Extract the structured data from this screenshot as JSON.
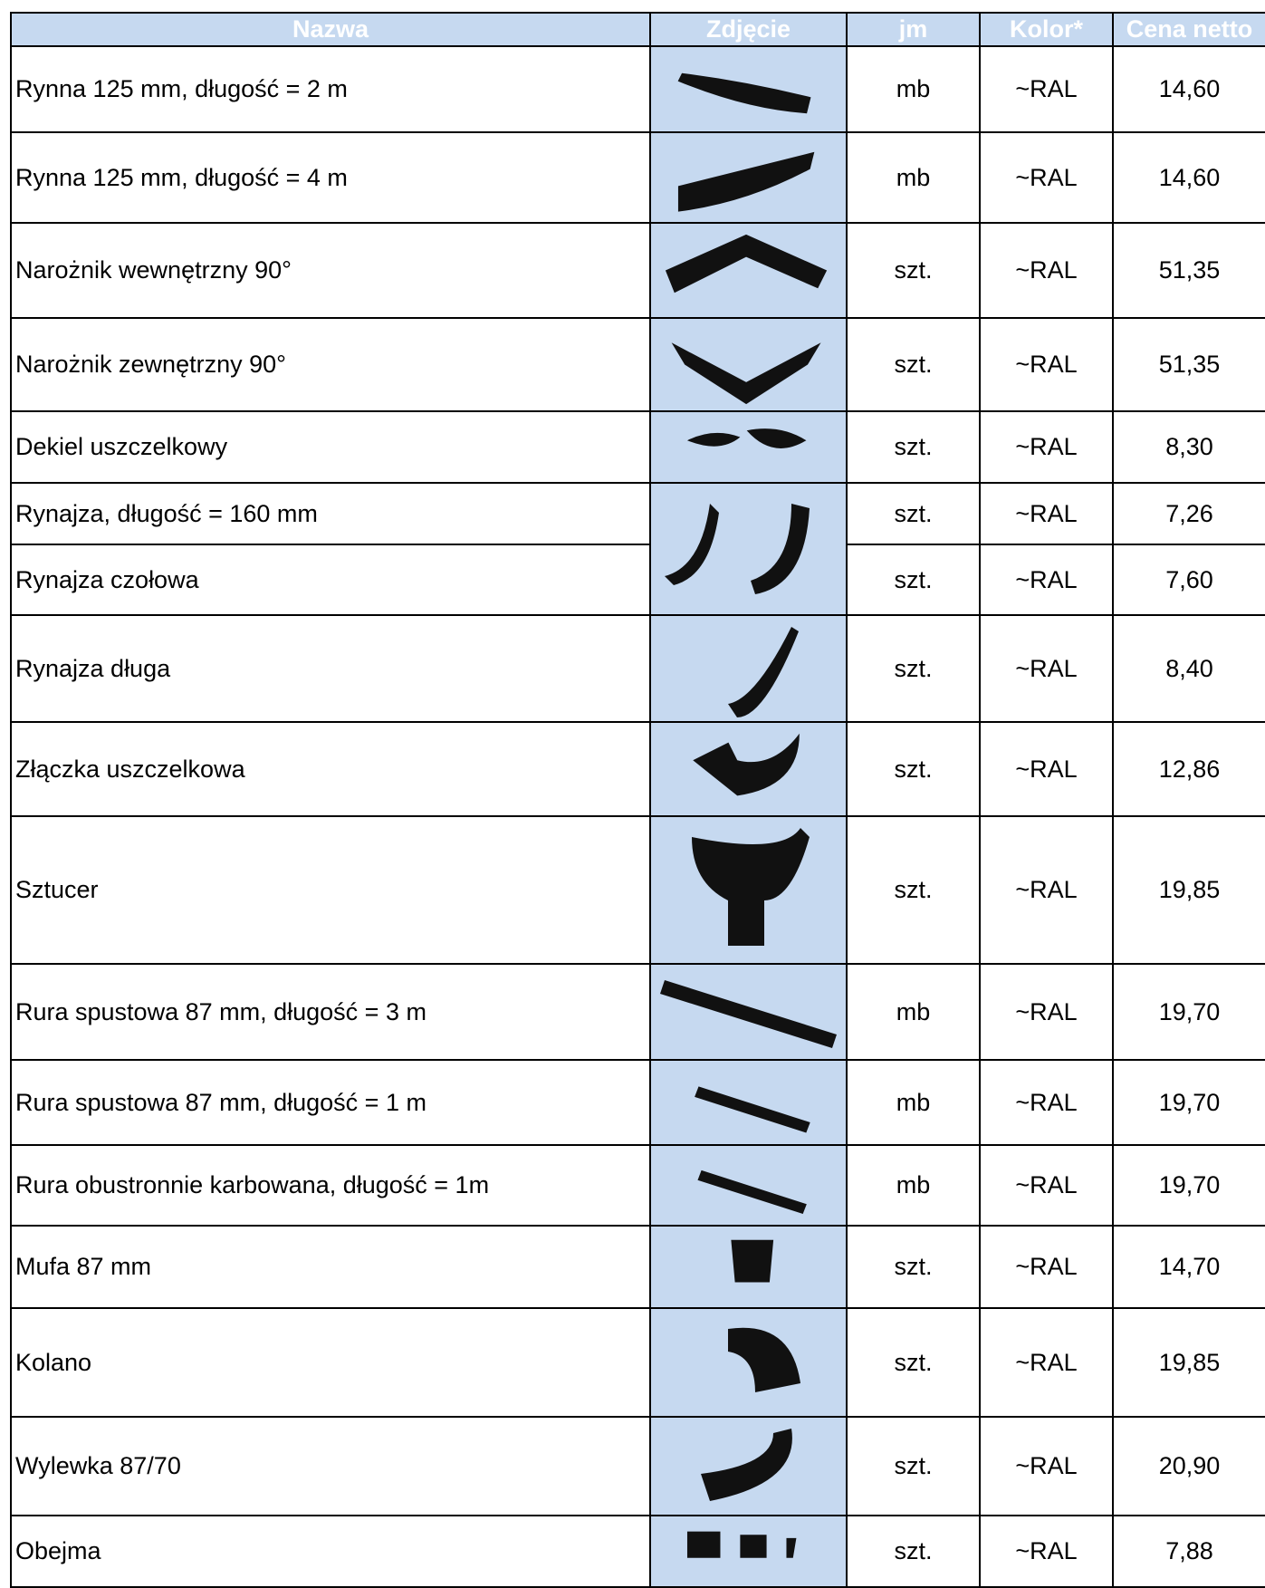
{
  "header": {
    "columns": [
      "Nazwa",
      "Zdjęcie",
      "jm",
      "Kolor*",
      "Cena netto"
    ]
  },
  "table": {
    "rows": [
      [
        "Rynna 125 mm, długość = 2 m",
        "mb",
        "~RAL",
        "14,60"
      ],
      [
        "Rynna 125 mm, długość = 4 m",
        "mb",
        "~RAL",
        "14,60"
      ],
      [
        "Narożnik wewnętrzny 90°",
        "szt.",
        "~RAL",
        "51,35"
      ],
      [
        "Narożnik zewnętrzny 90°",
        "szt.",
        "~RAL",
        "51,35"
      ],
      [
        "Dekiel uszczelkowy",
        "szt.",
        "~RAL",
        "8,30"
      ],
      [
        "Rynajza, długość = 160 mm",
        "szt.",
        "~RAL",
        "7,26"
      ],
      [
        "Rynajza czołowa",
        "szt.",
        "~RAL",
        "7,60"
      ],
      [
        "Rynajza długa",
        "szt.",
        "~RAL",
        "8,40"
      ],
      [
        "Złączka uszczelkowa",
        "szt.",
        "~RAL",
        "12,86"
      ],
      [
        "Sztucer",
        "szt.",
        "~RAL",
        "19,85"
      ],
      [
        "Rura spustowa 87 mm, długość = 3 m",
        "mb",
        "~RAL",
        "19,70"
      ],
      [
        "Rura spustowa 87 mm, długość = 1 m",
        "mb",
        "~RAL",
        "19,70"
      ],
      [
        "Rura obustronnie karbowana, długość = 1m",
        "mb",
        "~RAL",
        "19,70"
      ],
      [
        "Mufa 87 mm",
        "szt.",
        "~RAL",
        "14,70"
      ],
      [
        "Kolano",
        "szt.",
        "~RAL",
        "19,85"
      ],
      [
        "Wylewka 87/70",
        "szt.",
        "~RAL",
        "20,90"
      ],
      [
        "Obejma",
        "szt.",
        "~RAL",
        "7,88"
      ]
    ]
  }
}
